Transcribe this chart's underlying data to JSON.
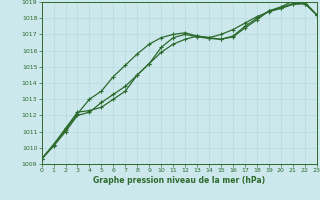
{
  "xlabel": "Graphe pression niveau de la mer (hPa)",
  "bg_color": "#cce8ec",
  "grid_color": "#b0d8dc",
  "line_color": "#2d6a2d",
  "xmin": 0,
  "xmax": 23,
  "ymin": 1009,
  "ymax": 1019,
  "yticks": [
    1009,
    1010,
    1011,
    1012,
    1013,
    1014,
    1015,
    1016,
    1017,
    1018,
    1019
  ],
  "xticks": [
    0,
    1,
    2,
    3,
    4,
    5,
    6,
    7,
    8,
    9,
    10,
    11,
    12,
    13,
    14,
    15,
    16,
    17,
    18,
    19,
    20,
    21,
    22,
    23
  ],
  "line1_x": [
    0,
    1,
    2,
    3,
    4,
    5,
    6,
    7,
    8,
    9,
    10,
    11,
    12,
    13,
    14,
    15,
    16,
    17,
    18,
    19,
    20,
    21,
    22,
    23
  ],
  "line1_y": [
    1009.3,
    1010.2,
    1011.1,
    1012.1,
    1013.0,
    1013.5,
    1014.4,
    1015.1,
    1015.8,
    1016.4,
    1016.8,
    1017.0,
    1017.1,
    1016.9,
    1016.8,
    1017.0,
    1017.3,
    1017.7,
    1018.1,
    1018.4,
    1018.6,
    1018.85,
    1018.9,
    1018.2
  ],
  "line2_x": [
    0,
    1,
    2,
    3,
    4,
    5,
    6,
    7,
    8,
    9,
    10,
    11,
    12,
    13,
    14,
    15,
    16,
    17,
    18,
    19,
    20,
    21,
    22,
    23
  ],
  "line2_y": [
    1009.3,
    1010.2,
    1011.2,
    1012.2,
    1012.3,
    1012.5,
    1013.0,
    1013.5,
    1014.5,
    1015.2,
    1016.2,
    1016.8,
    1017.0,
    1016.85,
    1016.75,
    1016.7,
    1016.85,
    1017.4,
    1017.9,
    1018.45,
    1018.65,
    1018.9,
    1018.9,
    1018.2
  ],
  "line3_x": [
    0,
    1,
    2,
    3,
    4,
    5,
    6,
    7,
    8,
    9,
    10,
    11,
    12,
    13,
    14,
    15,
    16,
    17,
    18,
    19,
    20,
    21,
    22,
    23
  ],
  "line3_y": [
    1009.3,
    1010.1,
    1011.0,
    1012.0,
    1012.2,
    1012.8,
    1013.3,
    1013.8,
    1014.5,
    1015.2,
    1015.9,
    1016.4,
    1016.7,
    1016.9,
    1016.8,
    1016.7,
    1016.9,
    1017.5,
    1018.0,
    1018.45,
    1018.7,
    1019.05,
    1019.0,
    1018.2
  ]
}
